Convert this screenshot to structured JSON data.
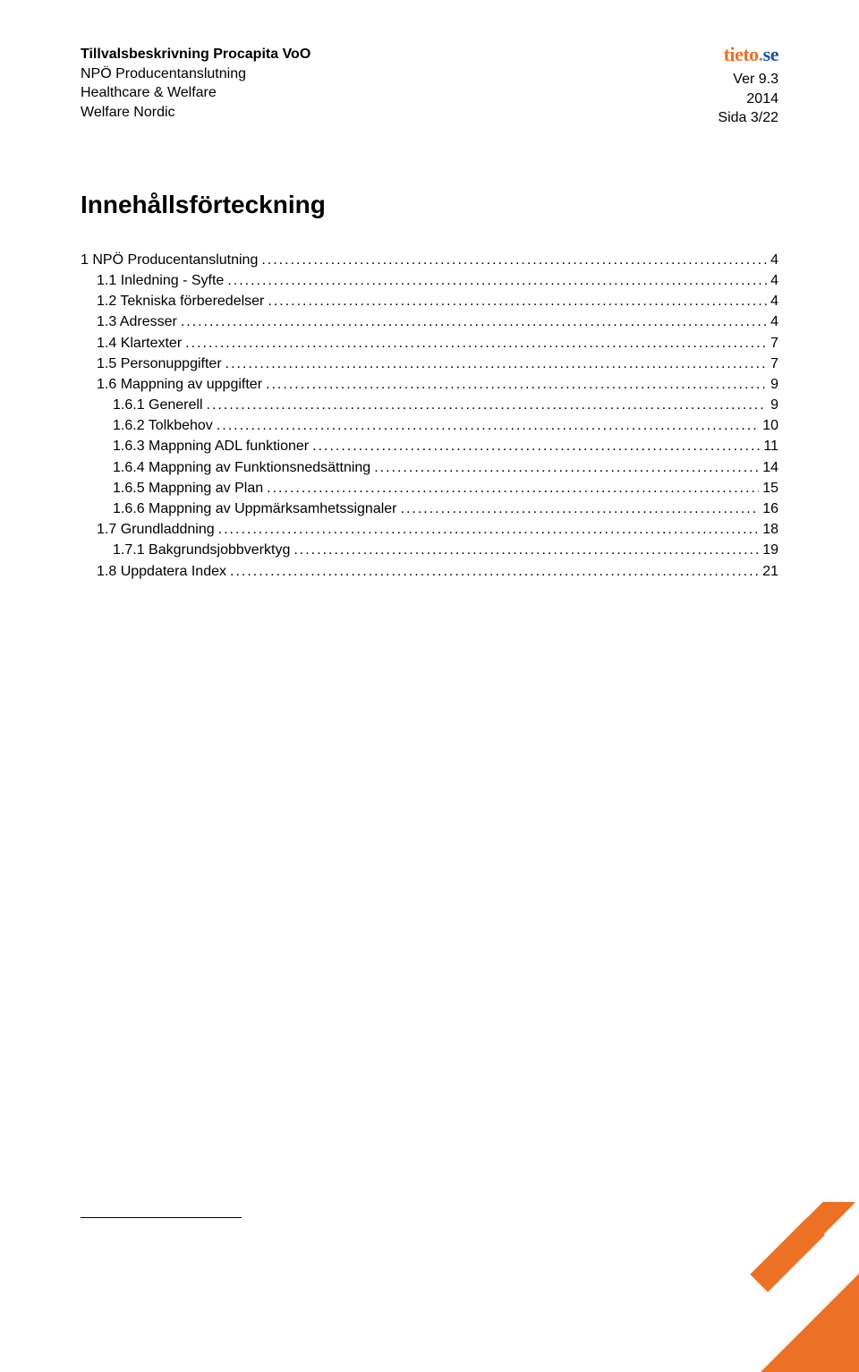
{
  "header": {
    "title_bold": "Tillvalsbeskrivning Procapita VoO",
    "line2": "NPÖ Producentanslutning",
    "line3": "Healthcare & Welfare",
    "line4": "Welfare Nordic",
    "version": "Ver 9.3",
    "year": "2014",
    "page_info": "Sida 3/22"
  },
  "logo": {
    "main": "tieto",
    "dot": ".",
    "suffix": "se",
    "main_color": "#ed7124",
    "dot_color": "#9a9a9a",
    "suffix_color": "#1e50a0"
  },
  "main_title": "Innehållsförteckning",
  "toc": [
    {
      "label": "1 NPÖ Producentanslutning",
      "page": "4",
      "indent": 0
    },
    {
      "label": "1.1 Inledning - Syfte",
      "page": "4",
      "indent": 1
    },
    {
      "label": "1.2 Tekniska förberedelser",
      "page": "4",
      "indent": 1
    },
    {
      "label": "1.3 Adresser",
      "page": "4",
      "indent": 1
    },
    {
      "label": "1.4 Klartexter",
      "page": "7",
      "indent": 1
    },
    {
      "label": "1.5 Personuppgifter",
      "page": "7",
      "indent": 1
    },
    {
      "label": "1.6 Mappning av uppgifter",
      "page": "9",
      "indent": 1
    },
    {
      "label": "1.6.1 Generell",
      "page": "9",
      "indent": 2
    },
    {
      "label": "1.6.2 Tolkbehov",
      "page": "10",
      "indent": 2
    },
    {
      "label": "1.6.3 Mappning ADL funktioner",
      "page": "11",
      "indent": 2
    },
    {
      "label": "1.6.4 Mappning av Funktionsnedsättning",
      "page": "14",
      "indent": 2
    },
    {
      "label": "1.6.5 Mappning av Plan",
      "page": "15",
      "indent": 2
    },
    {
      "label": "1.6.6 Mappning av Uppmärksamhetssignaler",
      "page": "16",
      "indent": 2
    },
    {
      "label": "1.7 Grundladdning",
      "page": "18",
      "indent": 1
    },
    {
      "label": "1.7.1 Bakgrundsjobbverktyg",
      "page": "19",
      "indent": 2
    },
    {
      "label": "1.8 Uppdatera Index",
      "page": "21",
      "indent": 1
    }
  ],
  "corner_logo": {
    "color": "#ed7124"
  }
}
